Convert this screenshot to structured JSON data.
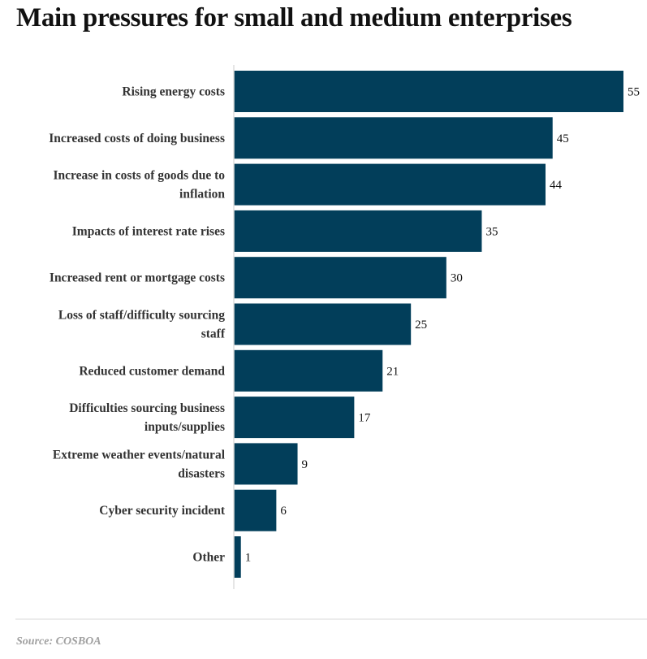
{
  "title": "Main pressures for small and medium enterprises",
  "source": "Source: COSBOA",
  "colors": {
    "bar": "#023e5a",
    "axis": "#dddddd"
  },
  "chart_data": {
    "type": "bar",
    "orientation": "horizontal",
    "title": "Main pressures for small and medium enterprises",
    "categories": [
      [
        "Rising energy costs"
      ],
      [
        "Increased costs of doing business"
      ],
      [
        "Increase in costs of goods due to",
        "inflation"
      ],
      [
        "Impacts of interest rate rises"
      ],
      [
        "Increased rent or mortgage costs"
      ],
      [
        "Loss of staff/difficulty sourcing",
        "staff"
      ],
      [
        "Reduced customer demand"
      ],
      [
        "Difficulties sourcing business",
        "inputs/supplies"
      ],
      [
        "Extreme weather events/natural",
        "disasters"
      ],
      [
        "Cyber security incident"
      ],
      [
        "Other"
      ]
    ],
    "values": [
      55,
      45,
      44,
      35,
      30,
      25,
      21,
      17,
      9,
      6,
      1
    ],
    "xlim": [
      0,
      55
    ],
    "xlabel": "",
    "ylabel": "",
    "grid": false
  }
}
